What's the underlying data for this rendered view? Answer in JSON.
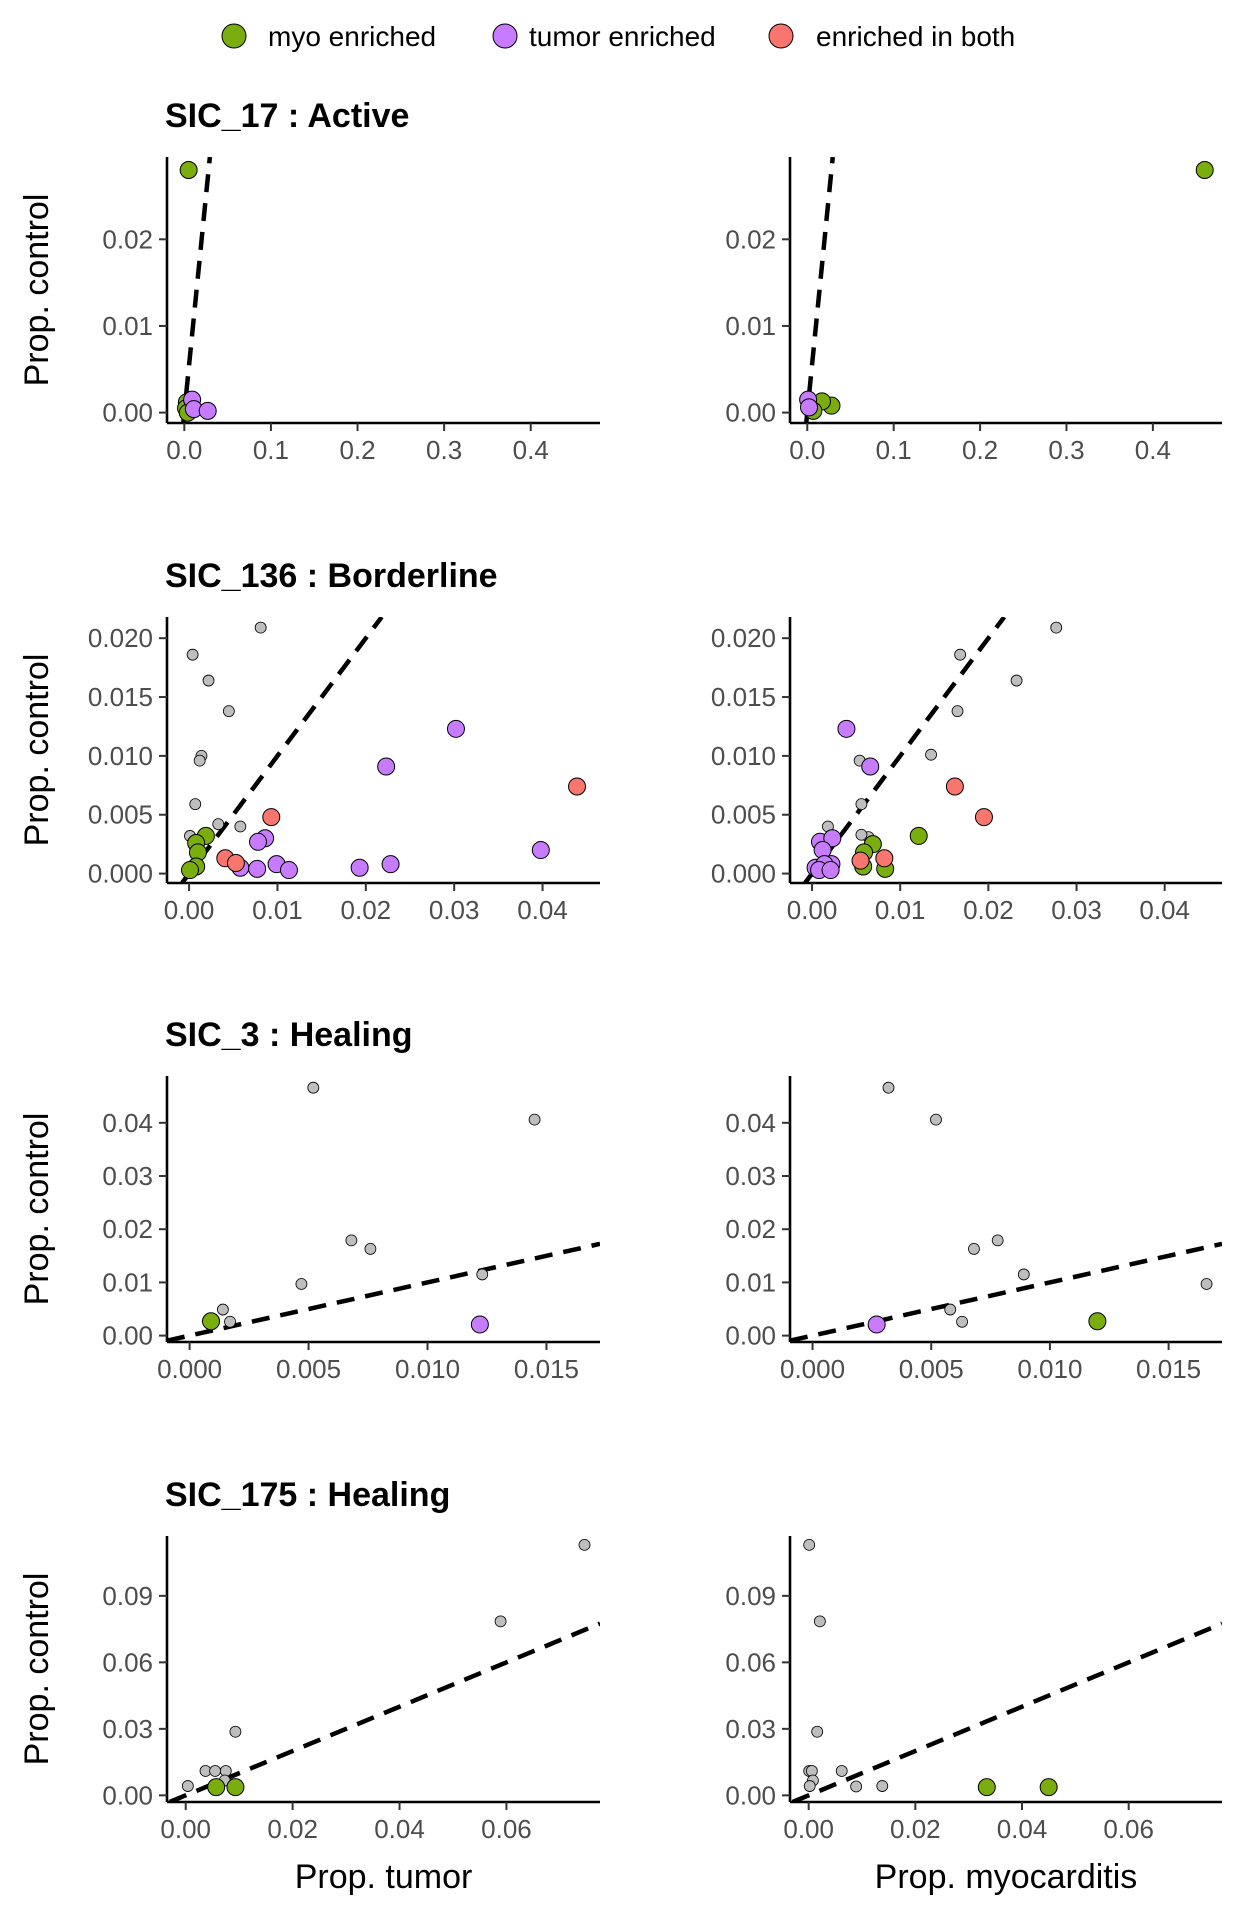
{
  "legend": {
    "items": [
      {
        "label": "myo enriched",
        "color": "#7AAD0E"
      },
      {
        "label": "tumor enriched",
        "color": "#C77CFF"
      },
      {
        "label": "enriched in both",
        "color": "#F8766D"
      }
    ]
  },
  "colors": {
    "none": "#BEBEBE",
    "line": "#000000",
    "axis": "#000000"
  },
  "chart_data": [
    {
      "type": "scatter",
      "title": "SIC_17 : Active",
      "xlabel": "",
      "ylabel": "Prop. control",
      "xlim": [
        -0.02,
        0.48
      ],
      "ylim": [
        -0.0012,
        0.0295
      ],
      "xticks": [
        0,
        0.1,
        0.2,
        0.3,
        0.4
      ],
      "xtick_labels": [
        "0.0",
        "0.1",
        "0.2",
        "0.3",
        "0.4"
      ],
      "yticks": [
        0,
        0.01,
        0.02
      ],
      "ytick_labels": [
        "0.00",
        "0.01",
        "0.02"
      ],
      "line_slope": 1,
      "show_title": true,
      "show_ylabel": true,
      "points": [
        {
          "x": 0.005,
          "y": 0.028,
          "group": "myo"
        },
        {
          "x": 0.003,
          "y": 0.0012,
          "group": "myo"
        },
        {
          "x": 0.002,
          "y": 0.0005,
          "group": "myo"
        },
        {
          "x": 0.004,
          "y": 0.0,
          "group": "myo"
        },
        {
          "x": 0.009,
          "y": 0.0015,
          "group": "tumor"
        },
        {
          "x": 0.011,
          "y": 0.0004,
          "group": "tumor"
        },
        {
          "x": 0.027,
          "y": 0.0002,
          "group": "tumor"
        }
      ]
    },
    {
      "type": "scatter",
      "title": "",
      "xlabel": "",
      "ylabel": "",
      "xlim": [
        -0.02,
        0.48
      ],
      "ylim": [
        -0.0012,
        0.0295
      ],
      "xticks": [
        0,
        0.1,
        0.2,
        0.3,
        0.4
      ],
      "xtick_labels": [
        "0.0",
        "0.1",
        "0.2",
        "0.3",
        "0.4"
      ],
      "yticks": [
        0,
        0.01,
        0.02
      ],
      "ytick_labels": [
        "0.00",
        "0.01",
        "0.02"
      ],
      "line_slope": 1,
      "show_title": false,
      "show_ylabel": false,
      "points": [
        {
          "x": 0.46,
          "y": 0.028,
          "group": "myo"
        },
        {
          "x": 0.028,
          "y": 0.0008,
          "group": "myo"
        },
        {
          "x": 0.017,
          "y": 0.0013,
          "group": "myo"
        },
        {
          "x": 0.007,
          "y": 0.0002,
          "group": "myo"
        },
        {
          "x": 0.001,
          "y": 0.0015,
          "group": "tumor"
        },
        {
          "x": 0.002,
          "y": 0.0006,
          "group": "tumor"
        }
      ]
    },
    {
      "type": "scatter",
      "title": "SIC_136 : Borderline",
      "xlabel": "",
      "ylabel": "Prop. control",
      "xlim": [
        -0.0025,
        0.0465
      ],
      "ylim": [
        -0.0008,
        0.0218
      ],
      "xticks": [
        0,
        0.01,
        0.02,
        0.03,
        0.04
      ],
      "xtick_labels": [
        "0.00",
        "0.01",
        "0.02",
        "0.03",
        "0.04"
      ],
      "yticks": [
        0,
        0.005,
        0.01,
        0.015,
        0.02
      ],
      "ytick_labels": [
        "0.000",
        "0.005",
        "0.010",
        "0.015",
        "0.020"
      ],
      "line_slope": 1,
      "show_title": true,
      "show_ylabel": true,
      "points": [
        {
          "x": 0.0004,
          "y": 0.0186,
          "group": "none"
        },
        {
          "x": 0.0081,
          "y": 0.0209,
          "group": "none"
        },
        {
          "x": 0.0022,
          "y": 0.0164,
          "group": "none"
        },
        {
          "x": 0.0045,
          "y": 0.0138,
          "group": "none"
        },
        {
          "x": 0.0014,
          "y": 0.01,
          "group": "none"
        },
        {
          "x": 0.0012,
          "y": 0.0096,
          "group": "none"
        },
        {
          "x": 0.0007,
          "y": 0.0059,
          "group": "none"
        },
        {
          "x": 0.0033,
          "y": 0.0042,
          "group": "none"
        },
        {
          "x": 0.0058,
          "y": 0.004,
          "group": "none"
        },
        {
          "x": 0.0001,
          "y": 0.0032,
          "group": "none"
        },
        {
          "x": 0.0019,
          "y": 0.0032,
          "group": "myo"
        },
        {
          "x": 0.0008,
          "y": 0.0026,
          "group": "myo"
        },
        {
          "x": 0.001,
          "y": 0.0018,
          "group": "myo"
        },
        {
          "x": 0.0008,
          "y": 0.0006,
          "group": "myo"
        },
        {
          "x": 0.0001,
          "y": 0.0003,
          "group": "myo"
        },
        {
          "x": 0.0302,
          "y": 0.0123,
          "group": "tumor"
        },
        {
          "x": 0.0223,
          "y": 0.0091,
          "group": "tumor"
        },
        {
          "x": 0.0398,
          "y": 0.002,
          "group": "tumor"
        },
        {
          "x": 0.0086,
          "y": 0.003,
          "group": "tumor"
        },
        {
          "x": 0.0078,
          "y": 0.0027,
          "group": "tumor"
        },
        {
          "x": 0.0099,
          "y": 0.0008,
          "group": "tumor"
        },
        {
          "x": 0.0193,
          "y": 0.0005,
          "group": "tumor"
        },
        {
          "x": 0.0228,
          "y": 0.0008,
          "group": "tumor"
        },
        {
          "x": 0.0058,
          "y": 0.0005,
          "group": "tumor"
        },
        {
          "x": 0.0077,
          "y": 0.0004,
          "group": "tumor"
        },
        {
          "x": 0.0113,
          "y": 0.0003,
          "group": "tumor"
        },
        {
          "x": 0.0439,
          "y": 0.0074,
          "group": "both"
        },
        {
          "x": 0.0093,
          "y": 0.0048,
          "group": "both"
        },
        {
          "x": 0.0041,
          "y": 0.0013,
          "group": "both"
        },
        {
          "x": 0.0053,
          "y": 0.0009,
          "group": "both"
        }
      ]
    },
    {
      "type": "scatter",
      "title": "",
      "xlabel": "",
      "ylabel": "",
      "xlim": [
        -0.0025,
        0.0465
      ],
      "ylim": [
        -0.0008,
        0.0218
      ],
      "xticks": [
        0,
        0.01,
        0.02,
        0.03,
        0.04
      ],
      "xtick_labels": [
        "0.00",
        "0.01",
        "0.02",
        "0.03",
        "0.04"
      ],
      "yticks": [
        0,
        0.005,
        0.01,
        0.015,
        0.02
      ],
      "ytick_labels": [
        "0.000",
        "0.005",
        "0.010",
        "0.015",
        "0.020"
      ],
      "line_slope": 1,
      "show_title": false,
      "show_ylabel": false,
      "points": [
        {
          "x": 0.0277,
          "y": 0.0209,
          "group": "none"
        },
        {
          "x": 0.0168,
          "y": 0.0186,
          "group": "none"
        },
        {
          "x": 0.0232,
          "y": 0.0164,
          "group": "none"
        },
        {
          "x": 0.0165,
          "y": 0.0138,
          "group": "none"
        },
        {
          "x": 0.0135,
          "y": 0.0101,
          "group": "none"
        },
        {
          "x": 0.0054,
          "y": 0.0096,
          "group": "none"
        },
        {
          "x": 0.0056,
          "y": 0.0059,
          "group": "none"
        },
        {
          "x": 0.0018,
          "y": 0.004,
          "group": "none"
        },
        {
          "x": 0.0064,
          "y": 0.0031,
          "group": "none"
        },
        {
          "x": 0.0056,
          "y": 0.0033,
          "group": "none"
        },
        {
          "x": 0.0121,
          "y": 0.0032,
          "group": "myo"
        },
        {
          "x": 0.0069,
          "y": 0.0025,
          "group": "myo"
        },
        {
          "x": 0.0059,
          "y": 0.0018,
          "group": "myo"
        },
        {
          "x": 0.0083,
          "y": 0.0004,
          "group": "myo"
        },
        {
          "x": 0.0058,
          "y": 0.0006,
          "group": "myo"
        },
        {
          "x": 0.0039,
          "y": 0.0123,
          "group": "tumor"
        },
        {
          "x": 0.0066,
          "y": 0.0091,
          "group": "tumor"
        },
        {
          "x": 0.0009,
          "y": 0.0027,
          "group": "tumor"
        },
        {
          "x": 0.0023,
          "y": 0.003,
          "group": "tumor"
        },
        {
          "x": 0.0012,
          "y": 0.002,
          "group": "tumor"
        },
        {
          "x": 0.0022,
          "y": 0.0008,
          "group": "tumor"
        },
        {
          "x": 0.0004,
          "y": 0.0005,
          "group": "tumor"
        },
        {
          "x": 0.0014,
          "y": 0.0008,
          "group": "tumor"
        },
        {
          "x": 0.0008,
          "y": 0.0003,
          "group": "tumor"
        },
        {
          "x": 0.0021,
          "y": 0.0003,
          "group": "tumor"
        },
        {
          "x": 0.0162,
          "y": 0.0074,
          "group": "both"
        },
        {
          "x": 0.0195,
          "y": 0.0048,
          "group": "both"
        },
        {
          "x": 0.0082,
          "y": 0.0013,
          "group": "both"
        },
        {
          "x": 0.0055,
          "y": 0.0011,
          "group": "both"
        }
      ]
    },
    {
      "type": "scatter",
      "title": "SIC_3 : Healing",
      "xlabel": "",
      "ylabel": "Prop. control",
      "xlim": [
        -0.00095,
        0.01725
      ],
      "ylim": [
        -0.0012,
        0.0488
      ],
      "xticks": [
        0,
        0.005,
        0.01,
        0.015
      ],
      "xtick_labels": [
        "0.000",
        "0.005",
        "0.010",
        "0.015"
      ],
      "yticks": [
        0,
        0.01,
        0.02,
        0.03,
        0.04
      ],
      "ytick_labels": [
        "0.00",
        "0.01",
        "0.02",
        "0.03",
        "0.04"
      ],
      "line_slope": 1,
      "show_title": true,
      "show_ylabel": true,
      "points": [
        {
          "x": 0.0052,
          "y": 0.0466,
          "group": "none"
        },
        {
          "x": 0.0145,
          "y": 0.0406,
          "group": "none"
        },
        {
          "x": 0.0068,
          "y": 0.0179,
          "group": "none"
        },
        {
          "x": 0.0076,
          "y": 0.0163,
          "group": "none"
        },
        {
          "x": 0.0123,
          "y": 0.0115,
          "group": "none"
        },
        {
          "x": 0.0047,
          "y": 0.0097,
          "group": "none"
        },
        {
          "x": 0.0014,
          "y": 0.0049,
          "group": "none"
        },
        {
          "x": 0.0017,
          "y": 0.0026,
          "group": "none"
        },
        {
          "x": 0.0009,
          "y": 0.0027,
          "group": "myo"
        },
        {
          "x": 0.0122,
          "y": 0.0021,
          "group": "tumor"
        }
      ]
    },
    {
      "type": "scatter",
      "title": "",
      "xlabel": "",
      "ylabel": "",
      "xlim": [
        -0.00095,
        0.01725
      ],
      "ylim": [
        -0.0012,
        0.0488
      ],
      "xticks": [
        0,
        0.005,
        0.01,
        0.015
      ],
      "xtick_labels": [
        "0.000",
        "0.005",
        "0.010",
        "0.015"
      ],
      "yticks": [
        0,
        0.01,
        0.02,
        0.03,
        0.04
      ],
      "ytick_labels": [
        "0.00",
        "0.01",
        "0.02",
        "0.03",
        "0.04"
      ],
      "line_slope": 1,
      "show_title": false,
      "show_ylabel": false,
      "points": [
        {
          "x": 0.0032,
          "y": 0.0466,
          "group": "none"
        },
        {
          "x": 0.0052,
          "y": 0.0406,
          "group": "none"
        },
        {
          "x": 0.0078,
          "y": 0.0179,
          "group": "none"
        },
        {
          "x": 0.0068,
          "y": 0.0163,
          "group": "none"
        },
        {
          "x": 0.0089,
          "y": 0.0115,
          "group": "none"
        },
        {
          "x": 0.0166,
          "y": 0.0097,
          "group": "none"
        },
        {
          "x": 0.0058,
          "y": 0.0049,
          "group": "none"
        },
        {
          "x": 0.0063,
          "y": 0.0026,
          "group": "none"
        },
        {
          "x": 0.012,
          "y": 0.0027,
          "group": "myo"
        },
        {
          "x": 0.0027,
          "y": 0.0021,
          "group": "tumor"
        }
      ]
    },
    {
      "type": "scatter",
      "title": "SIC_175 : Healing",
      "xlabel": "Prop. tumor",
      "ylabel": "Prop. control",
      "xlim": [
        -0.0035,
        0.0775
      ],
      "ylim": [
        -0.003,
        0.117
      ],
      "xticks": [
        0,
        0.02,
        0.04,
        0.06
      ],
      "xtick_labels": [
        "0.00",
        "0.02",
        "0.04",
        "0.06"
      ],
      "yticks": [
        0,
        0.03,
        0.06,
        0.09
      ],
      "ytick_labels": [
        "0.00",
        "0.03",
        "0.06",
        "0.09"
      ],
      "line_slope": 1,
      "show_title": true,
      "show_ylabel": true,
      "points": [
        {
          "x": 0.0746,
          "y": 0.113,
          "group": "none"
        },
        {
          "x": 0.0589,
          "y": 0.0785,
          "group": "none"
        },
        {
          "x": 0.0093,
          "y": 0.0287,
          "group": "none"
        },
        {
          "x": 0.0037,
          "y": 0.011,
          "group": "none"
        },
        {
          "x": 0.0055,
          "y": 0.011,
          "group": "none"
        },
        {
          "x": 0.0075,
          "y": 0.011,
          "group": "none"
        },
        {
          "x": 0.0073,
          "y": 0.0067,
          "group": "none"
        },
        {
          "x": 0.0004,
          "y": 0.0042,
          "group": "none"
        },
        {
          "x": 0.0057,
          "y": 0.0037,
          "group": "myo"
        },
        {
          "x": 0.0093,
          "y": 0.0037,
          "group": "myo"
        }
      ]
    },
    {
      "type": "scatter",
      "title": "",
      "xlabel": "Prop. myocarditis",
      "ylabel": "",
      "xlim": [
        -0.0035,
        0.0775
      ],
      "ylim": [
        -0.003,
        0.117
      ],
      "xticks": [
        0,
        0.02,
        0.04,
        0.06
      ],
      "xtick_labels": [
        "0.00",
        "0.02",
        "0.04",
        "0.06"
      ],
      "yticks": [
        0,
        0.03,
        0.06,
        0.09
      ],
      "ytick_labels": [
        "0.00",
        "0.03",
        "0.06",
        "0.09"
      ],
      "line_slope": 1,
      "show_title": false,
      "show_ylabel": false,
      "points": [
        {
          "x": 0.0001,
          "y": 0.113,
          "group": "none"
        },
        {
          "x": 0.0021,
          "y": 0.0785,
          "group": "none"
        },
        {
          "x": 0.0016,
          "y": 0.0287,
          "group": "none"
        },
        {
          "x": 0.0001,
          "y": 0.011,
          "group": "none"
        },
        {
          "x": 0.0006,
          "y": 0.011,
          "group": "none"
        },
        {
          "x": 0.0062,
          "y": 0.011,
          "group": "none"
        },
        {
          "x": 0.0008,
          "y": 0.0067,
          "group": "none"
        },
        {
          "x": 0.0002,
          "y": 0.0042,
          "group": "none"
        },
        {
          "x": 0.0089,
          "y": 0.004,
          "group": "none"
        },
        {
          "x": 0.0138,
          "y": 0.0042,
          "group": "none"
        },
        {
          "x": 0.0334,
          "y": 0.0037,
          "group": "myo"
        },
        {
          "x": 0.045,
          "y": 0.0037,
          "group": "myo"
        }
      ]
    }
  ]
}
